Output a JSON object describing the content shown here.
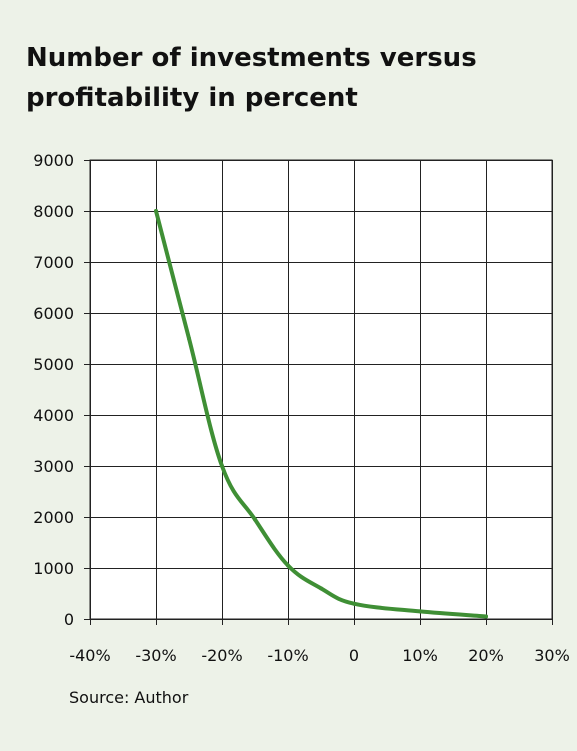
{
  "title": "Number of investments versus profitability in percent",
  "source": "Source: Author",
  "colors": {
    "background": "#edf2e8",
    "plot_background": "#ffffff",
    "grid": "#222222",
    "line": "#3f8f35"
  },
  "chart_data": {
    "type": "line",
    "title": "Number of investments versus profitability in percent",
    "xlabel": "",
    "ylabel": "",
    "x": [
      -30,
      -25,
      -20,
      -15,
      -10,
      -5,
      0,
      10,
      20
    ],
    "series": [
      {
        "values": [
          8000,
          5500,
          3000,
          1950,
          1050,
          600,
          300,
          150,
          50
        ]
      }
    ],
    "xlim": [
      -40,
      30
    ],
    "ylim": [
      0,
      9000
    ],
    "x_ticks": [
      -40,
      -30,
      -20,
      -10,
      0,
      10,
      20,
      30
    ],
    "x_tick_labels": [
      "-40%",
      "-30%",
      "-20%",
      "-10%",
      "0",
      "10%",
      "20%",
      "30%"
    ],
    "y_ticks": [
      0,
      1000,
      2000,
      3000,
      4000,
      5000,
      6000,
      7000,
      8000,
      9000
    ],
    "y_tick_labels": [
      "0",
      "1000",
      "2000",
      "3000",
      "4000",
      "5000",
      "6000",
      "7000",
      "8000",
      "9000"
    ],
    "grid": true,
    "legend": "none"
  }
}
